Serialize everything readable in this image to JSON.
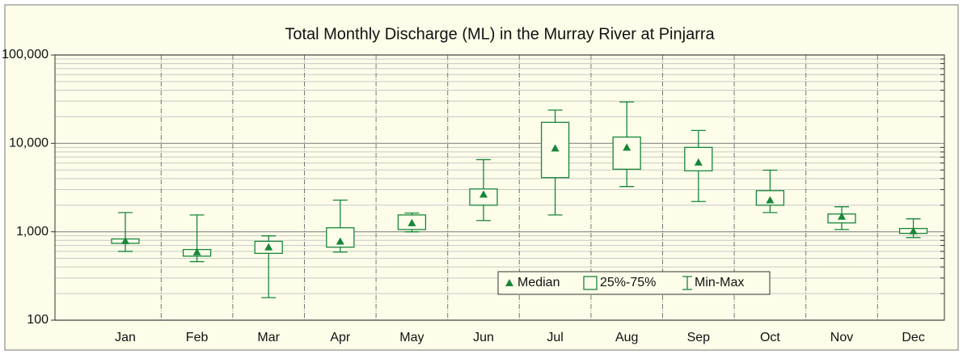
{
  "chart_data": {
    "type": "box",
    "title": "Total Monthly Discharge (ML) in the Murray River at Pinjarra",
    "categories": [
      "Jan",
      "Feb",
      "Mar",
      "Apr",
      "May",
      "Jun",
      "Jul",
      "Aug",
      "Sep",
      "Oct",
      "Nov",
      "Dec"
    ],
    "min": [
      600,
      460,
      180,
      590,
      1000,
      1340,
      1550,
      3250,
      2200,
      1650,
      1060,
      860
    ],
    "q1": [
      740,
      530,
      570,
      670,
      1060,
      2000,
      4100,
      5100,
      4900,
      2000,
      1260,
      960
    ],
    "median": [
      790,
      590,
      670,
      780,
      1260,
      2650,
      8800,
      9000,
      6100,
      2280,
      1490,
      1020
    ],
    "q3": [
      830,
      630,
      780,
      1110,
      1550,
      3050,
      17300,
      11800,
      9000,
      2920,
      1590,
      1090
    ],
    "max": [
      1650,
      1550,
      900,
      2280,
      1630,
      6550,
      23800,
      29400,
      14000,
      4970,
      1920,
      1400
    ],
    "legend": [
      "Median",
      "25%-75%",
      "Min-Max"
    ],
    "legend_position": "lower center",
    "color": "#17863a",
    "log_y": true,
    "ylim": [
      100,
      100000
    ],
    "yticks": [
      100,
      {
        "value": 1000,
        "label": "1,000"
      },
      {
        "value": 10000,
        "label": "10,000"
      },
      {
        "value": 100000,
        "label": "100,000"
      }
    ],
    "yminor_ticks": [
      200,
      300,
      400,
      500,
      600,
      700,
      800,
      900,
      2000,
      3000,
      4000,
      5000,
      6000,
      7000,
      8000,
      9000,
      20000,
      30000,
      40000,
      50000,
      60000,
      70000,
      80000,
      90000
    ],
    "grid": true
  }
}
